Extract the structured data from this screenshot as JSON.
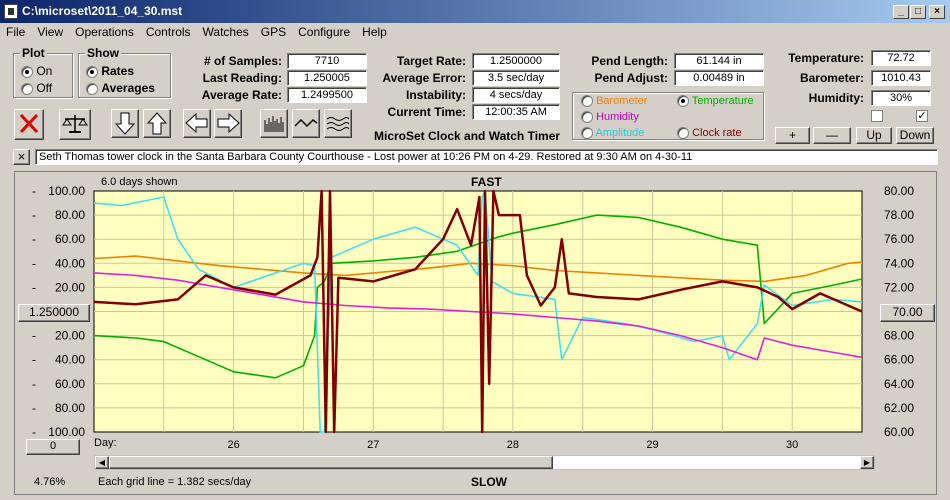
{
  "window": {
    "title": "C:\\microset\\2011_04_30.mst"
  },
  "menu": [
    "File",
    "View",
    "Operations",
    "Controls",
    "Watches",
    "GPS",
    "Configure",
    "Help"
  ],
  "plot_group": {
    "title": "Plot",
    "on_label": "On",
    "off_label": "Off",
    "selected": "On"
  },
  "show_group": {
    "title": "Show",
    "rates_label": "Rates",
    "averages_label": "Averages",
    "selected": "Rates"
  },
  "stats": {
    "samples_label": "# of Samples:",
    "samples_value": "7710",
    "last_label": "Last Reading:",
    "last_value": "1.250005",
    "avg_label": "Average Rate:",
    "avg_value": "1.2499500",
    "target_label": "Target Rate:",
    "target_value": "1.2500000",
    "avgerr_label": "Average Error:",
    "avgerr_value": "3.5 sec/day",
    "instab_label": "Instability:",
    "instab_value": "4 secs/day",
    "time_label": "Current Time:",
    "time_value": "12:00:35 AM",
    "pendlen_label": "Pend Length:",
    "pendlen_value": "61.144 in",
    "pendadj_label": "Pend Adjust:",
    "pendadj_value": "0.00489 in",
    "temp_label": "Temperature:",
    "temp_value": "72.72",
    "baro_label": "Barometer:",
    "baro_value": "1010.43",
    "humid_label": "Humidity:",
    "humid_value": "30%"
  },
  "app_caption": "MicroSet Clock and Watch Timer",
  "sensors": {
    "barometer": "Barometer",
    "temperature": "Temperature",
    "humidity": "Humidity",
    "amplitude": "Amplitude",
    "clockrate": "Clock rate",
    "selected": "Temperature"
  },
  "small_buttons": {
    "plus": "+",
    "minus": "—",
    "up": "Up",
    "down": "Down"
  },
  "note": "Seth Thomas tower clock in the Santa Barbara County Courthouse  - Lost power at 10:26 PM on 4-29. Restored at 9:30 AM on 4-30-11",
  "chart_info": {
    "days_shown": "6.0 days shown",
    "fast": "FAST",
    "slow": "SLOW",
    "center_value": "1.250000",
    "right_value": "70.00",
    "zero_value": "0",
    "day_label": "Day:",
    "status_left": "4.76%",
    "grid_text": "Each grid line = 1.382 secs/day"
  },
  "colors": {
    "clockrate": "#800000",
    "temperature": "#00b000",
    "amplitude": "#40e0f0",
    "humidity": "#e020e0",
    "barometer": "#f08000",
    "plot_bg": "#ffffc0"
  },
  "chart_data": {
    "type": "line",
    "title": "FAST",
    "left_axis": {
      "ticks": [
        "100.00",
        "80.00",
        "60.00",
        "40.00",
        "20.00",
        "",
        "20.00",
        "40.00",
        "60.00",
        "80.00",
        "100.00"
      ],
      "values": [
        100,
        80,
        60,
        40,
        20,
        0,
        -20,
        -40,
        -60,
        -80,
        -100
      ]
    },
    "right_axis": {
      "ticks": [
        "80.00",
        "78.00",
        "76.00",
        "74.00",
        "72.00",
        "70.00",
        "68.00",
        "66.00",
        "64.00",
        "62.00",
        "60.00"
      ],
      "ylim": [
        60,
        80
      ]
    },
    "x_ticks": [
      "26",
      "27",
      "28",
      "29",
      "30"
    ],
    "xlim": [
      25.0,
      30.5
    ],
    "series": [
      {
        "key": "barometer",
        "x": [
          25.0,
          25.3,
          25.6,
          25.9,
          26.2,
          26.5,
          26.8,
          27.1,
          27.4,
          27.7,
          28.0,
          28.3,
          28.6,
          28.9,
          29.2,
          29.5,
          29.8,
          30.1,
          30.4,
          30.5
        ],
        "y": [
          44,
          46,
          42,
          38,
          35,
          32,
          30,
          33,
          36,
          40,
          38,
          34,
          32,
          30,
          28,
          26,
          25,
          30,
          40,
          41
        ]
      },
      {
        "key": "temperature",
        "x": [
          25.0,
          25.3,
          25.5,
          25.8,
          26.0,
          26.3,
          26.5,
          26.58,
          26.6,
          26.65,
          26.7,
          27.0,
          27.3,
          27.6,
          27.9,
          28.0,
          28.3,
          28.6,
          28.9,
          29.2,
          29.5,
          29.75,
          29.8,
          30.0,
          30.3,
          30.5
        ],
        "y": [
          -20,
          -22,
          -25,
          -40,
          -50,
          -55,
          -45,
          -20,
          20,
          25,
          40,
          42,
          45,
          50,
          62,
          65,
          72,
          80,
          78,
          70,
          60,
          55,
          -10,
          15,
          22,
          27
        ]
      },
      {
        "key": "amplitude",
        "x": [
          25.0,
          25.2,
          25.5,
          25.6,
          25.75,
          26.0,
          26.5,
          26.58,
          26.62,
          26.65,
          26.7,
          27.0,
          27.3,
          27.6,
          27.75,
          27.78,
          27.8,
          27.85,
          28.0,
          28.3,
          28.35,
          28.5,
          28.8,
          29.0,
          29.3,
          29.5,
          29.55,
          29.75,
          29.8,
          30.0,
          30.3,
          30.5
        ],
        "y": [
          90,
          88,
          95,
          60,
          35,
          20,
          40,
          38,
          -100,
          -100,
          45,
          60,
          70,
          55,
          30,
          95,
          100,
          25,
          15,
          10,
          -40,
          -5,
          -10,
          -15,
          -25,
          -20,
          -40,
          -10,
          22,
          5,
          10,
          8
        ]
      },
      {
        "key": "humidity",
        "x": [
          25.0,
          25.3,
          25.6,
          25.9,
          26.2,
          26.5,
          26.8,
          27.1,
          27.4,
          27.7,
          28.0,
          28.3,
          28.6,
          28.9,
          29.2,
          29.5,
          29.75,
          29.8,
          30.0,
          30.3,
          30.5
        ],
        "y": [
          32,
          30,
          26,
          20,
          14,
          8,
          5,
          3,
          2,
          0,
          -2,
          -5,
          -8,
          -12,
          -20,
          -30,
          -40,
          -22,
          -28,
          -34,
          -38
        ]
      },
      {
        "key": "clockrate",
        "x": [
          25.0,
          25.3,
          25.6,
          25.8,
          26.0,
          26.3,
          26.55,
          26.6,
          26.63,
          26.66,
          26.69,
          26.72,
          26.75,
          27.0,
          27.3,
          27.5,
          27.6,
          27.7,
          27.76,
          27.78,
          27.8,
          27.83,
          27.86,
          27.9,
          28.05,
          28.1,
          28.2,
          28.3,
          28.35,
          28.4,
          28.6,
          28.9,
          29.2,
          29.5,
          29.75,
          29.9,
          30.0,
          30.2,
          30.5
        ],
        "y": [
          8,
          6,
          10,
          30,
          20,
          14,
          30,
          45,
          100,
          -100,
          100,
          -100,
          28,
          25,
          35,
          60,
          85,
          55,
          95,
          -100,
          100,
          -60,
          100,
          80,
          80,
          30,
          5,
          20,
          60,
          15,
          12,
          10,
          18,
          25,
          20,
          12,
          2,
          15,
          0
        ]
      }
    ]
  }
}
